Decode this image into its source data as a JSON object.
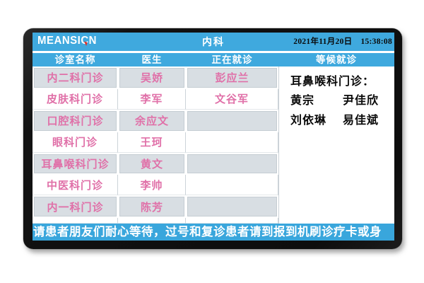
{
  "brand": {
    "logo_text": "MEANSICN"
  },
  "topbar": {
    "department": "内科",
    "datetime_date": "2021年11月20日",
    "datetime_time": "15:38:08"
  },
  "queue_table": {
    "headers": {
      "room": "诊室名称",
      "doctor": "医生",
      "current": "正在就诊",
      "waiting": "等候就诊"
    },
    "rows": [
      {
        "room": "内二科门诊",
        "doctor": "吴娇",
        "current": "彭应兰"
      },
      {
        "room": "皮肤科门诊",
        "doctor": "李军",
        "current": "文谷军"
      },
      {
        "room": "口腔科门诊",
        "doctor": "余应文",
        "current": ""
      },
      {
        "room": "眼科门诊",
        "doctor": "王珂",
        "current": ""
      },
      {
        "room": "耳鼻喉科门诊",
        "doctor": "黄文",
        "current": ""
      },
      {
        "room": "中医科门诊",
        "doctor": "李帅",
        "current": ""
      },
      {
        "room": "内一科门诊",
        "doctor": "陈芳",
        "current": ""
      },
      {
        "room": "",
        "doctor": "",
        "current": ""
      }
    ]
  },
  "waiting_panel": {
    "title": "耳鼻喉科门诊：",
    "names": [
      "黄宗",
      "尹佳欣",
      "刘依琳",
      "易佳斌"
    ]
  },
  "ticker": {
    "text": "请患者朋友们耐心等待，过号和复诊患者请到报到机刷诊疗卡或身"
  },
  "colors": {
    "accent_blue": "#3FA9DE",
    "row_gray": "#D8DEE3",
    "pink_text": "#E070A8",
    "logo_red": "#E03028"
  }
}
